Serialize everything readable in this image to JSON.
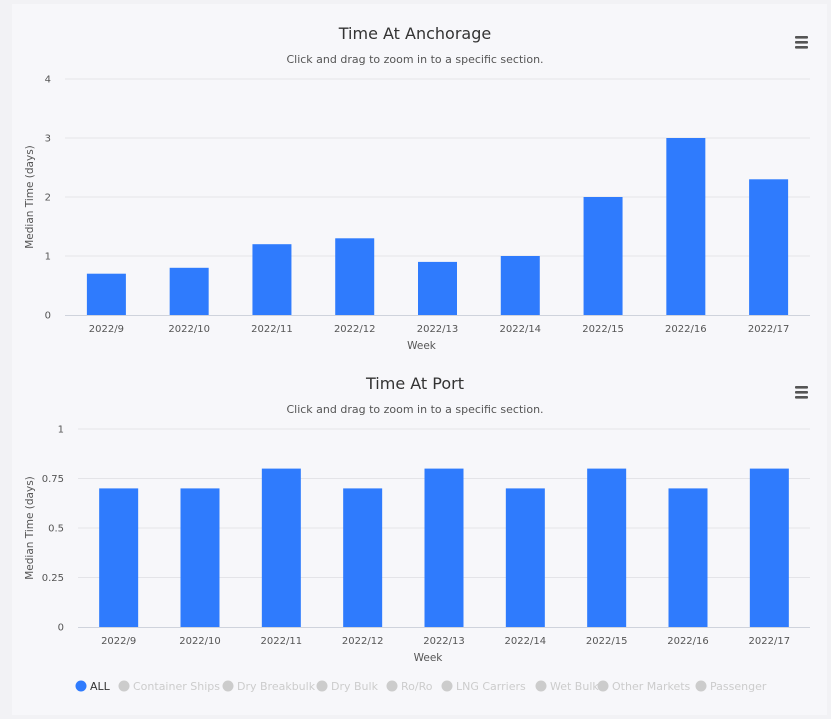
{
  "chart_data": [
    {
      "type": "bar",
      "title": "Time At Anchorage",
      "subtitle": "Click and drag to zoom in to a specific section.",
      "xlabel": "Week",
      "ylabel": "Median Time (days)",
      "categories": [
        "2022/9",
        "2022/10",
        "2022/11",
        "2022/12",
        "2022/13",
        "2022/14",
        "2022/15",
        "2022/16",
        "2022/17"
      ],
      "values": [
        0.7,
        0.8,
        1.2,
        1.3,
        0.9,
        1.0,
        2.0,
        3.0,
        2.3
      ],
      "ylim": [
        0,
        4
      ],
      "yticks": [
        0,
        1,
        2,
        3,
        4
      ],
      "ytick_labels": [
        "0",
        "1",
        "2",
        "3",
        "4"
      ],
      "grid": true,
      "color": "#2f7bfd"
    },
    {
      "type": "bar",
      "title": "Time At Port",
      "subtitle": "Click and drag to zoom in to a specific section.",
      "xlabel": "Week",
      "ylabel": "Median Time (days)",
      "categories": [
        "2022/9",
        "2022/10",
        "2022/11",
        "2022/12",
        "2022/13",
        "2022/14",
        "2022/15",
        "2022/16",
        "2022/17"
      ],
      "values": [
        0.7,
        0.7,
        0.8,
        0.7,
        0.8,
        0.7,
        0.8,
        0.7,
        0.8
      ],
      "ylim": [
        0,
        1
      ],
      "yticks": [
        0,
        0.25,
        0.5,
        0.75,
        1
      ],
      "ytick_labels": [
        "0",
        "0.25",
        "0.5",
        "0.75",
        "1"
      ],
      "grid": true,
      "color": "#2f7bfd"
    }
  ],
  "legend": {
    "items": [
      {
        "label": "ALL",
        "active": true
      },
      {
        "label": "Container Ships",
        "active": false
      },
      {
        "label": "Dry Breakbulk",
        "active": false
      },
      {
        "label": "Dry Bulk",
        "active": false
      },
      {
        "label": "Ro/Ro",
        "active": false
      },
      {
        "label": "LNG Carriers",
        "active": false
      },
      {
        "label": "Wet Bulk",
        "active": false
      },
      {
        "label": "Other Markets",
        "active": false
      },
      {
        "label": "Passenger",
        "active": false
      }
    ],
    "active_color": "#2f7bfd",
    "inactive_color": "#cccccc",
    "active_text_color": "#333333",
    "inactive_text_color": "#cccccc"
  },
  "menu_icon": "hamburger-menu-icon"
}
